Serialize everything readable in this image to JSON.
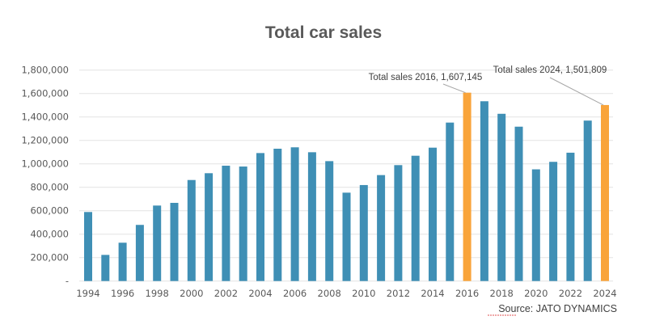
{
  "chart_data": {
    "type": "bar",
    "title": "Total car sales",
    "xlabel": "",
    "ylabel": "",
    "ylim": [
      0,
      1800000
    ],
    "yticks": [
      0,
      200000,
      400000,
      600000,
      800000,
      1000000,
      1200000,
      1400000,
      1600000,
      1800000
    ],
    "ytick_labels": [
      "-",
      "200,000",
      "400,000",
      "600,000",
      "800,000",
      "1,000,000",
      "1,200,000",
      "1,400,000",
      "1,600,000",
      "1,800,000"
    ],
    "grid": true,
    "categories": [
      "1994",
      "1995",
      "1996",
      "1997",
      "1998",
      "1999",
      "2000",
      "2001",
      "2002",
      "2003",
      "2004",
      "2005",
      "2006",
      "2007",
      "2008",
      "2009",
      "2010",
      "2011",
      "2012",
      "2013",
      "2014",
      "2015",
      "2016",
      "2017",
      "2018",
      "2019",
      "2020",
      "2021",
      "2022",
      "2023",
      "2024"
    ],
    "xtick_labels": [
      "1994",
      "1996",
      "1998",
      "2000",
      "2002",
      "2004",
      "2006",
      "2008",
      "2010",
      "2012",
      "2014",
      "2016",
      "2018",
      "2020",
      "2022",
      "2024"
    ],
    "values": [
      589000,
      223000,
      327000,
      479000,
      644000,
      667000,
      862000,
      920000,
      984000,
      977000,
      1092000,
      1129000,
      1141000,
      1099000,
      1023000,
      754000,
      819000,
      904000,
      989000,
      1069000,
      1138000,
      1352000,
      1607145,
      1534000,
      1427000,
      1317000,
      953000,
      1017000,
      1095000,
      1369000,
      1501809
    ],
    "colors": {
      "default": "#3f8fb5",
      "highlight": "#f9a43a",
      "grid": "#e4e4e4",
      "leader": "#a6a6a6"
    },
    "highlighted": [
      "2016",
      "2024"
    ],
    "annotations": [
      {
        "category": "2016",
        "text": "Total sales 2016,  1,607,145"
      },
      {
        "category": "2024",
        "text": "Total sales 2024,  1,501,809"
      }
    ],
    "source": "Source: JATO DYNAMICS"
  }
}
